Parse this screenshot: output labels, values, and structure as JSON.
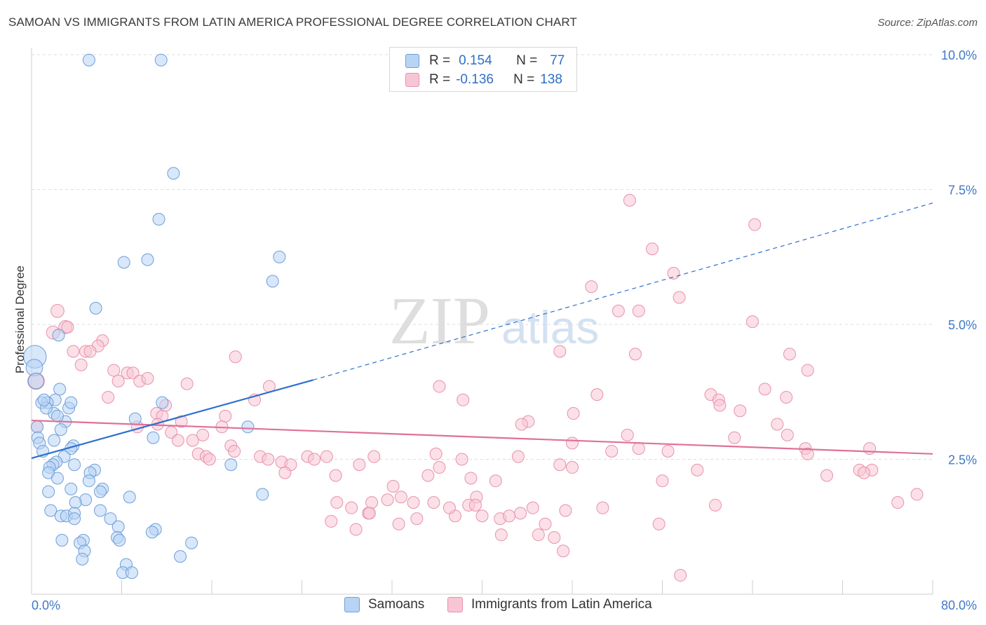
{
  "title": "SAMOAN VS IMMIGRANTS FROM LATIN AMERICA PROFESSIONAL DEGREE CORRELATION CHART",
  "source": "Source: ZipAtlas.com",
  "watermark": {
    "zip": "ZIP",
    "atlas": "atlas"
  },
  "legend_top": {
    "rows": [
      {
        "r_label": "R =",
        "r_value": "0.154",
        "n_label": "N =",
        "n_value": "77"
      },
      {
        "r_label": "R =",
        "r_value": "-0.136",
        "n_label": "N =",
        "n_value": "138"
      }
    ]
  },
  "legend_bottom": {
    "series1": "Samoans",
    "series2": "Immigrants from Latin America"
  },
  "colors": {
    "blue_fill": "#b8d4f4",
    "blue_stroke": "#6e9fd9",
    "blue_line": "#2d6fcf",
    "pink_fill": "#f7c6d4",
    "pink_stroke": "#e891ad",
    "pink_line": "#e07098",
    "grid": "#dcdcdc",
    "tick_label": "#3f78c8"
  },
  "chart_data": {
    "type": "scatter",
    "xlabel": "",
    "ylabel": "Professional Degree",
    "xlim": [
      0,
      80
    ],
    "ylim": [
      0,
      10
    ],
    "x_tick_labels": [
      "0.0%",
      "80.0%"
    ],
    "y_ticks": [
      2.5,
      5.0,
      7.5,
      10.0
    ],
    "y_tick_labels": [
      "2.5%",
      "5.0%",
      "7.5%",
      "10.0%"
    ],
    "grid": true,
    "series": [
      {
        "name": "Samoans",
        "trend": {
          "x0": 0,
          "y0": 2.52,
          "x1": 25,
          "y1": 3.97,
          "dash_to_x": 80,
          "dash_to_y": 7.25
        },
        "points": [
          [
            5.1,
            9.9
          ],
          [
            11.5,
            9.9
          ],
          [
            12.6,
            7.8
          ],
          [
            11.3,
            6.95
          ],
          [
            8.2,
            6.15
          ],
          [
            10.3,
            6.2
          ],
          [
            22,
            6.25
          ],
          [
            21.4,
            5.8
          ],
          [
            5.7,
            5.3
          ],
          [
            0.3,
            4.4
          ],
          [
            0.25,
            4.2
          ],
          [
            0.4,
            3.95
          ],
          [
            2.4,
            4.8
          ],
          [
            2.5,
            3.8
          ],
          [
            2.1,
            3.6
          ],
          [
            1.4,
            3.55
          ],
          [
            0.9,
            3.55
          ],
          [
            2.0,
            3.35
          ],
          [
            1.3,
            3.45
          ],
          [
            3.3,
            3.45
          ],
          [
            3.5,
            3.55
          ],
          [
            11.6,
            3.55
          ],
          [
            3.0,
            3.2
          ],
          [
            9.2,
            3.25
          ],
          [
            0.5,
            3.1
          ],
          [
            2.6,
            3.05
          ],
          [
            19.2,
            3.1
          ],
          [
            0.55,
            2.9
          ],
          [
            0.7,
            2.8
          ],
          [
            10.8,
            2.9
          ],
          [
            3.7,
            2.75
          ],
          [
            3.5,
            2.7
          ],
          [
            1.0,
            2.65
          ],
          [
            2.9,
            2.55
          ],
          [
            2.2,
            2.45
          ],
          [
            1.9,
            2.4
          ],
          [
            3.8,
            2.4
          ],
          [
            1.6,
            2.35
          ],
          [
            5.6,
            2.3
          ],
          [
            1.5,
            2.25
          ],
          [
            5.2,
            2.25
          ],
          [
            17.7,
            2.4
          ],
          [
            2.3,
            2.15
          ],
          [
            5.1,
            2.1
          ],
          [
            1.5,
            1.9
          ],
          [
            3.5,
            1.95
          ],
          [
            6.3,
            1.95
          ],
          [
            6.1,
            1.9
          ],
          [
            4.8,
            1.75
          ],
          [
            20.5,
            1.85
          ],
          [
            8.7,
            1.8
          ],
          [
            3.9,
            1.7
          ],
          [
            1.7,
            1.55
          ],
          [
            6.1,
            1.55
          ],
          [
            2.6,
            1.45
          ],
          [
            3.1,
            1.45
          ],
          [
            3.8,
            1.5
          ],
          [
            3.8,
            1.4
          ],
          [
            7.0,
            1.4
          ],
          [
            7.7,
            1.25
          ],
          [
            11.0,
            1.2
          ],
          [
            10.7,
            1.15
          ],
          [
            7.6,
            1.05
          ],
          [
            7.8,
            1.0
          ],
          [
            2.7,
            1.0
          ],
          [
            4.6,
            1.0
          ],
          [
            4.3,
            0.95
          ],
          [
            4.7,
            0.8
          ],
          [
            14.2,
            0.95
          ],
          [
            4.5,
            0.65
          ],
          [
            13.2,
            0.7
          ],
          [
            8.4,
            0.55
          ],
          [
            8.1,
            0.4
          ],
          [
            8.9,
            0.4
          ],
          [
            2.3,
            3.3
          ],
          [
            1.1,
            3.6
          ],
          [
            2.0,
            2.85
          ]
        ],
        "sizes": {
          "9": 1.9,
          "10": 1.4,
          "11": 1.3
        }
      },
      {
        "name": "Immigrants from Latin America",
        "trend": {
          "x0": 0,
          "y0": 3.22,
          "x1": 80,
          "y1": 2.6
        },
        "points": [
          [
            0.4,
            3.95
          ],
          [
            0.5,
            3.1
          ],
          [
            2.3,
            5.25
          ],
          [
            1.9,
            4.85
          ],
          [
            3.0,
            4.95
          ],
          [
            3.2,
            4.95
          ],
          [
            6.3,
            4.7
          ],
          [
            5.9,
            4.6
          ],
          [
            3.7,
            4.5
          ],
          [
            4.8,
            4.5
          ],
          [
            5.2,
            4.5
          ],
          [
            4.4,
            4.25
          ],
          [
            18.1,
            4.4
          ],
          [
            7.3,
            4.15
          ],
          [
            8.5,
            4.1
          ],
          [
            9.0,
            4.1
          ],
          [
            7.7,
            3.95
          ],
          [
            9.6,
            3.95
          ],
          [
            10.3,
            4.0
          ],
          [
            6.8,
            3.65
          ],
          [
            13.8,
            3.9
          ],
          [
            21.1,
            3.85
          ],
          [
            19.8,
            3.6
          ],
          [
            11.1,
            3.35
          ],
          [
            11.6,
            3.3
          ],
          [
            11.9,
            3.5
          ],
          [
            9.4,
            3.1
          ],
          [
            11.2,
            3.15
          ],
          [
            13.3,
            3.2
          ],
          [
            17.2,
            3.3
          ],
          [
            15.2,
            2.95
          ],
          [
            16.9,
            3.1
          ],
          [
            12.4,
            3.0
          ],
          [
            14.3,
            2.85
          ],
          [
            13.0,
            2.85
          ],
          [
            17.7,
            2.75
          ],
          [
            18.0,
            2.65
          ],
          [
            14.8,
            2.6
          ],
          [
            15.5,
            2.55
          ],
          [
            15.8,
            2.5
          ],
          [
            20.3,
            2.55
          ],
          [
            21.0,
            2.5
          ],
          [
            22.2,
            2.45
          ],
          [
            23.0,
            2.4
          ],
          [
            22.5,
            2.25
          ],
          [
            24.5,
            2.55
          ],
          [
            25.1,
            2.5
          ],
          [
            26.2,
            2.55
          ],
          [
            27.0,
            2.2
          ],
          [
            29.1,
            2.4
          ],
          [
            30.4,
            2.55
          ],
          [
            32.1,
            2.0
          ],
          [
            35.9,
            2.6
          ],
          [
            35.2,
            2.2
          ],
          [
            36.2,
            2.35
          ],
          [
            38.2,
            2.5
          ],
          [
            39.0,
            2.15
          ],
          [
            41.2,
            2.1
          ],
          [
            43.2,
            2.55
          ],
          [
            44.1,
            3.2
          ],
          [
            43.5,
            3.15
          ],
          [
            46.9,
            2.4
          ],
          [
            48.0,
            2.35
          ],
          [
            48.1,
            3.35
          ],
          [
            48.0,
            2.8
          ],
          [
            51.5,
            2.65
          ],
          [
            52.9,
            2.95
          ],
          [
            53.9,
            2.7
          ],
          [
            56.0,
            2.1
          ],
          [
            56.5,
            2.65
          ],
          [
            59.1,
            2.3
          ],
          [
            60.3,
            3.7
          ],
          [
            61.0,
            3.6
          ],
          [
            61.1,
            3.5
          ],
          [
            62.9,
            3.4
          ],
          [
            62.4,
            2.9
          ],
          [
            66.2,
            3.15
          ],
          [
            67.1,
            2.95
          ],
          [
            68.7,
            2.7
          ],
          [
            68.9,
            2.6
          ],
          [
            70.6,
            2.2
          ],
          [
            73.5,
            2.3
          ],
          [
            74.6,
            2.3
          ],
          [
            73.9,
            2.25
          ],
          [
            74.4,
            2.7
          ],
          [
            76.9,
            1.7
          ],
          [
            78.6,
            1.85
          ],
          [
            28.4,
            1.6
          ],
          [
            27.1,
            1.7
          ],
          [
            30.2,
            1.7
          ],
          [
            31.6,
            1.75
          ],
          [
            32.8,
            1.8
          ],
          [
            33.9,
            1.7
          ],
          [
            37.6,
            1.45
          ],
          [
            37.1,
            1.6
          ],
          [
            35.7,
            1.7
          ],
          [
            41.6,
            1.4
          ],
          [
            42.4,
            1.45
          ],
          [
            43.4,
            1.5
          ],
          [
            45.6,
            1.3
          ],
          [
            47.4,
            1.55
          ],
          [
            44.5,
            1.6
          ],
          [
            50.7,
            1.6
          ],
          [
            55.7,
            1.3
          ],
          [
            60.7,
            1.65
          ],
          [
            46.4,
            1.05
          ],
          [
            41.7,
            1.1
          ],
          [
            32.6,
            1.3
          ],
          [
            34.2,
            1.4
          ],
          [
            28.8,
            1.2
          ],
          [
            29.9,
            1.5
          ],
          [
            40.0,
            1.45
          ],
          [
            38.8,
            1.65
          ],
          [
            45.0,
            1.1
          ],
          [
            47.2,
            0.8
          ],
          [
            57.6,
            0.35
          ],
          [
            39.5,
            1.8
          ],
          [
            39.4,
            1.65
          ],
          [
            49.7,
            5.7
          ],
          [
            52.1,
            5.25
          ],
          [
            53.9,
            5.25
          ],
          [
            53.1,
            7.3
          ],
          [
            57.0,
            5.95
          ],
          [
            55.1,
            6.4
          ],
          [
            64.2,
            6.85
          ],
          [
            57.5,
            5.5
          ],
          [
            53.6,
            4.45
          ],
          [
            67.3,
            4.45
          ],
          [
            64.0,
            5.05
          ],
          [
            68.9,
            4.15
          ],
          [
            46.9,
            4.5
          ],
          [
            36.2,
            3.85
          ],
          [
            38.3,
            3.6
          ],
          [
            50.2,
            3.7
          ],
          [
            65.1,
            3.8
          ],
          [
            67.0,
            3.65
          ],
          [
            30.0,
            1.5
          ],
          [
            26.6,
            1.35
          ]
        ],
        "sizes": {
          "0": 1.4,
          "2": 1.1,
          "3": 1.1,
          "4": 1.1
        }
      }
    ]
  }
}
